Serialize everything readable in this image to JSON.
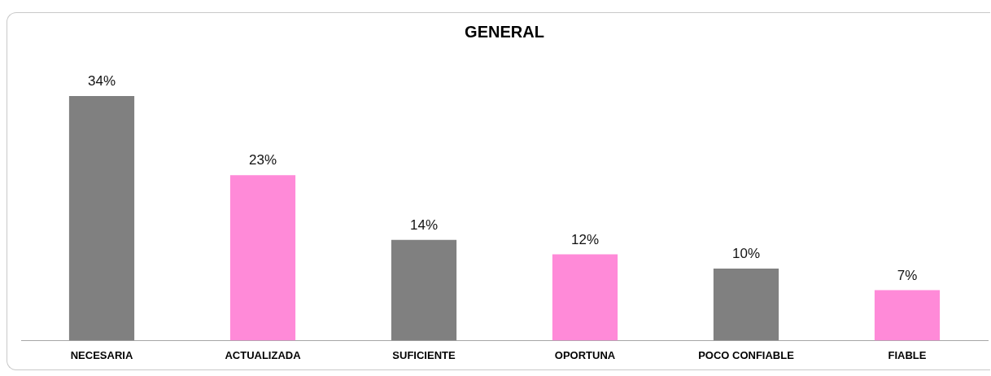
{
  "chart_data": {
    "type": "bar",
    "title": "GENERAL",
    "categories": [
      "NECESARIA",
      "ACTUALIZADA",
      "SUFICIENTE",
      "OPORTUNA",
      "POCO CONFIABLE",
      "FIABLE"
    ],
    "values": [
      34,
      23,
      14,
      12,
      10,
      7
    ],
    "colors": [
      "#808080",
      "#ff8ad8",
      "#808080",
      "#ff8ad8",
      "#808080",
      "#ff8ad8"
    ],
    "value_labels": [
      "34%",
      "23%",
      "14%",
      "12%",
      "10%",
      "7%"
    ]
  }
}
